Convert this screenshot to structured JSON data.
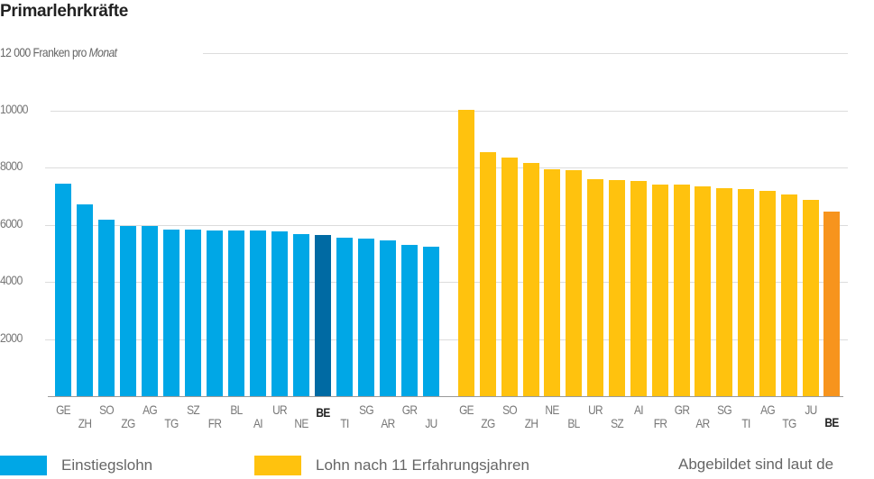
{
  "chart_data": {
    "type": "bar",
    "title": "Primarlehrkräfte",
    "ylabel": "Franken pro Monat",
    "ylim": [
      0,
      12000
    ],
    "yticks": [
      2000,
      4000,
      6000,
      8000,
      10000,
      12000
    ],
    "ytick_labels": [
      "2000",
      "4000",
      "6000",
      "8000",
      "10000",
      "12 000 Franken pro Monat"
    ],
    "grid": true,
    "legend_position": "bottom",
    "series": [
      {
        "name": "Einstiegslohn",
        "color": "#00a7e6",
        "highlight_color": "#006aa3",
        "highlight": "BE",
        "categories": [
          "GE",
          "ZH",
          "SO",
          "ZG",
          "AG",
          "TG",
          "SZ",
          "FR",
          "BL",
          "AI",
          "UR",
          "NE",
          "BE",
          "TI",
          "SG",
          "AR",
          "GR",
          "JU"
        ],
        "values": [
          7420,
          6700,
          6180,
          5950,
          5940,
          5820,
          5820,
          5800,
          5780,
          5780,
          5750,
          5680,
          5640,
          5540,
          5520,
          5450,
          5290,
          5230
        ]
      },
      {
        "name": "Lohn nach 11 Erfahrungsjahren",
        "color": "#ffc20e",
        "highlight_color": "#f7941d",
        "highlight": "BE",
        "categories": [
          "GE",
          "ZG",
          "SO",
          "ZH",
          "NE",
          "BL",
          "UR",
          "SZ",
          "AI",
          "FR",
          "GR",
          "AR",
          "SG",
          "TI",
          "AG",
          "TG",
          "JU",
          "BE"
        ],
        "values": [
          10020,
          8520,
          8350,
          8160,
          7950,
          7920,
          7600,
          7570,
          7540,
          7390,
          7390,
          7330,
          7260,
          7230,
          7170,
          7040,
          6860,
          6450
        ]
      }
    ]
  },
  "header": {
    "title": "Primarlehrkräfte",
    "unit_prefix": "12 000 Franken pro ",
    "unit_suffix": "Monat"
  },
  "axis": {
    "ticks": [
      {
        "label": "10000",
        "value": 10000
      },
      {
        "label": "8000",
        "value": 8000
      },
      {
        "label": "6000",
        "value": 6000
      },
      {
        "label": "4000",
        "value": 4000
      },
      {
        "label": "2000",
        "value": 2000
      }
    ]
  },
  "legend": {
    "items": [
      {
        "label": "Einstiegslohn",
        "color": "#00a7e6"
      },
      {
        "label": "Lohn nach 11 Erfahrungsjahren",
        "color": "#ffc20e"
      }
    ],
    "note": "Abgebildet sind laut de"
  }
}
